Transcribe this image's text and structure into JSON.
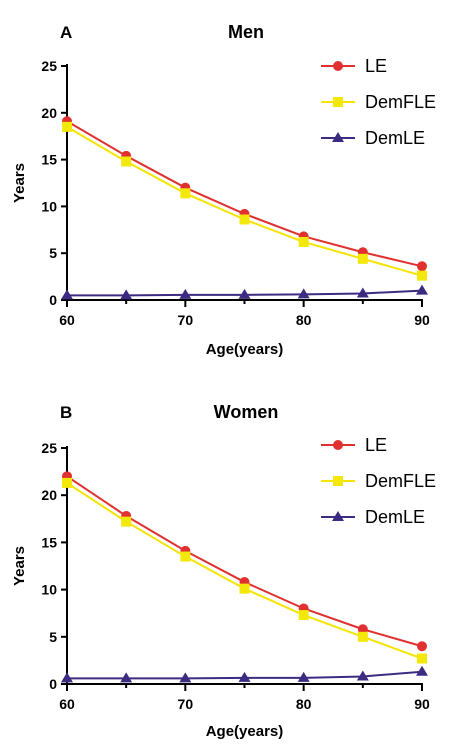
{
  "colors": {
    "LE": "#e03030",
    "DemFLE": "#f5e400",
    "DemFLE_marker": "#f3e80a",
    "DemLE": "#3d2b82",
    "axis": "#000000"
  },
  "chart_data": [
    {
      "type": "line",
      "panel_label": "A",
      "title": "Men",
      "xlabel": "Age(years)",
      "ylabel": "Years",
      "xlim": [
        60,
        90
      ],
      "ylim": [
        0,
        25
      ],
      "x_ticks": [
        60,
        70,
        80,
        90
      ],
      "x_minor_ticks": [
        65,
        75,
        85
      ],
      "y_ticks": [
        0,
        5,
        10,
        15,
        20,
        25
      ],
      "legend_position": "top-right",
      "x": [
        60,
        65,
        70,
        75,
        80,
        85,
        90
      ],
      "series": [
        {
          "name": "LE",
          "marker": "circle",
          "values": [
            19.1,
            15.4,
            12.0,
            9.2,
            6.8,
            5.1,
            3.6
          ]
        },
        {
          "name": "DemFLE",
          "marker": "square",
          "values": [
            18.5,
            14.8,
            11.4,
            8.6,
            6.2,
            4.4,
            2.6
          ]
        },
        {
          "name": "DemLE",
          "marker": "triangle",
          "values": [
            0.5,
            0.5,
            0.55,
            0.55,
            0.6,
            0.7,
            1.0
          ]
        }
      ]
    },
    {
      "type": "line",
      "panel_label": "B",
      "title": "Women",
      "xlabel": "Age(years)",
      "ylabel": "Years",
      "xlim": [
        60,
        90
      ],
      "ylim": [
        0,
        25
      ],
      "x_ticks": [
        60,
        70,
        80,
        90
      ],
      "x_minor_ticks": [
        65,
        75,
        85
      ],
      "y_ticks": [
        0,
        5,
        10,
        15,
        20,
        25
      ],
      "legend_position": "top-right",
      "x": [
        60,
        65,
        70,
        75,
        80,
        85,
        90
      ],
      "series": [
        {
          "name": "LE",
          "marker": "circle",
          "values": [
            22.0,
            17.8,
            14.1,
            10.8,
            8.0,
            5.8,
            4.0
          ]
        },
        {
          "name": "DemFLE",
          "marker": "square",
          "values": [
            21.3,
            17.2,
            13.5,
            10.1,
            7.3,
            5.0,
            2.7
          ]
        },
        {
          "name": "DemLE",
          "marker": "triangle",
          "values": [
            0.6,
            0.6,
            0.6,
            0.65,
            0.65,
            0.8,
            1.3
          ]
        }
      ]
    }
  ]
}
